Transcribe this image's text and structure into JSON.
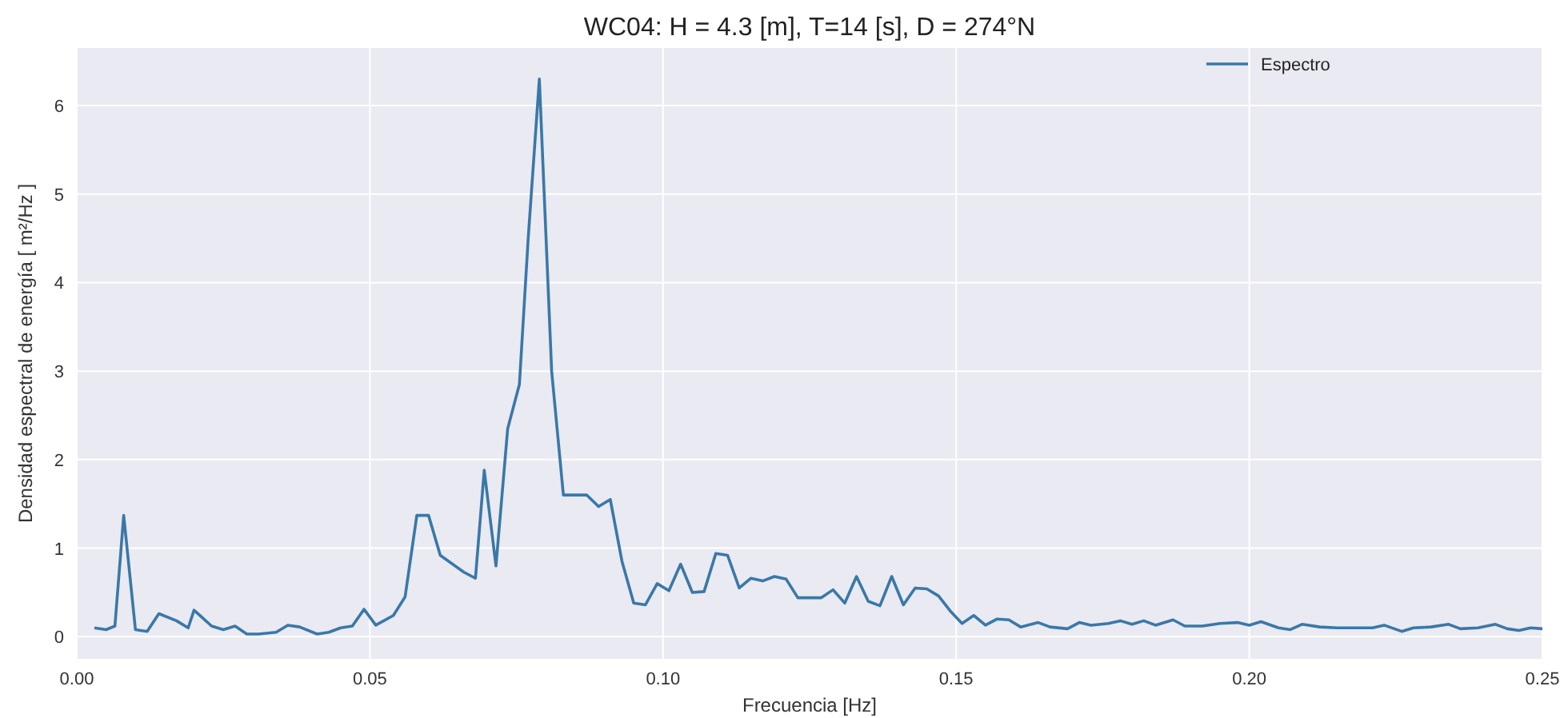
{
  "chart_data": {
    "type": "line",
    "title": "WC04: H = 4.3 [m], T=14 [s], D = 274°N",
    "xlabel": "Frecuencia [Hz]",
    "ylabel": "Densidad espectral de energía [ m²/Hz ]",
    "xlim": [
      0,
      0.25
    ],
    "xticks": [
      {
        "value": 0,
        "label": "0.00"
      },
      {
        "value": 0.05,
        "label": "0.05"
      },
      {
        "value": 0.1,
        "label": "0.10"
      },
      {
        "value": 0.15,
        "label": "0.15"
      },
      {
        "value": 0.2,
        "label": "0.20"
      },
      {
        "value": 0.25,
        "label": "0.25"
      }
    ],
    "ylim": [
      -0.25,
      6.65
    ],
    "yticks": [
      0,
      1,
      2,
      3,
      4,
      5,
      6
    ],
    "grid": true,
    "legend": "top right",
    "series": [
      {
        "name": "Espectro",
        "color": "#3a78a8",
        "x": [
          0.003,
          0.005,
          0.0065,
          0.008,
          0.01,
          0.012,
          0.014,
          0.017,
          0.019,
          0.02,
          0.023,
          0.025,
          0.027,
          0.029,
          0.031,
          0.034,
          0.036,
          0.038,
          0.041,
          0.043,
          0.045,
          0.047,
          0.049,
          0.051,
          0.054,
          0.056,
          0.058,
          0.06,
          0.062,
          0.066,
          0.068,
          0.0695,
          0.0715,
          0.0735,
          0.0755,
          0.077,
          0.0789,
          0.081,
          0.083,
          0.087,
          0.089,
          0.091,
          0.093,
          0.095,
          0.097,
          0.099,
          0.101,
          0.103,
          0.105,
          0.107,
          0.109,
          0.111,
          0.113,
          0.115,
          0.117,
          0.119,
          0.121,
          0.123,
          0.127,
          0.129,
          0.131,
          0.133,
          0.135,
          0.137,
          0.139,
          0.141,
          0.143,
          0.145,
          0.147,
          0.149,
          0.151,
          0.153,
          0.155,
          0.157,
          0.159,
          0.161,
          0.164,
          0.166,
          0.169,
          0.171,
          0.173,
          0.176,
          0.178,
          0.18,
          0.182,
          0.184,
          0.187,
          0.189,
          0.192,
          0.195,
          0.198,
          0.2,
          0.202,
          0.205,
          0.207,
          0.209,
          0.212,
          0.215,
          0.218,
          0.221,
          0.223,
          0.226,
          0.228,
          0.231,
          0.234,
          0.236,
          0.239,
          0.242,
          0.244,
          0.246,
          0.248,
          0.25
        ],
        "values": [
          0.1,
          0.08,
          0.12,
          1.37,
          0.08,
          0.06,
          0.26,
          0.18,
          0.1,
          0.3,
          0.12,
          0.08,
          0.12,
          0.03,
          0.03,
          0.05,
          0.13,
          0.11,
          0.03,
          0.05,
          0.1,
          0.12,
          0.31,
          0.13,
          0.24,
          0.45,
          1.37,
          1.37,
          0.92,
          0.73,
          0.66,
          1.88,
          0.8,
          2.35,
          2.85,
          4.5,
          6.3,
          3.0,
          1.6,
          1.6,
          1.47,
          1.55,
          0.85,
          0.38,
          0.36,
          0.6,
          0.52,
          0.82,
          0.5,
          0.51,
          0.94,
          0.92,
          0.55,
          0.66,
          0.63,
          0.68,
          0.65,
          0.44,
          0.44,
          0.53,
          0.38,
          0.68,
          0.4,
          0.35,
          0.68,
          0.36,
          0.55,
          0.54,
          0.46,
          0.29,
          0.15,
          0.24,
          0.13,
          0.2,
          0.19,
          0.11,
          0.16,
          0.11,
          0.09,
          0.16,
          0.13,
          0.15,
          0.18,
          0.14,
          0.18,
          0.13,
          0.19,
          0.12,
          0.12,
          0.15,
          0.16,
          0.13,
          0.17,
          0.1,
          0.08,
          0.14,
          0.11,
          0.1,
          0.1,
          0.1,
          0.13,
          0.06,
          0.1,
          0.11,
          0.14,
          0.09,
          0.1,
          0.14,
          0.09,
          0.07,
          0.1,
          0.09
        ]
      }
    ]
  }
}
